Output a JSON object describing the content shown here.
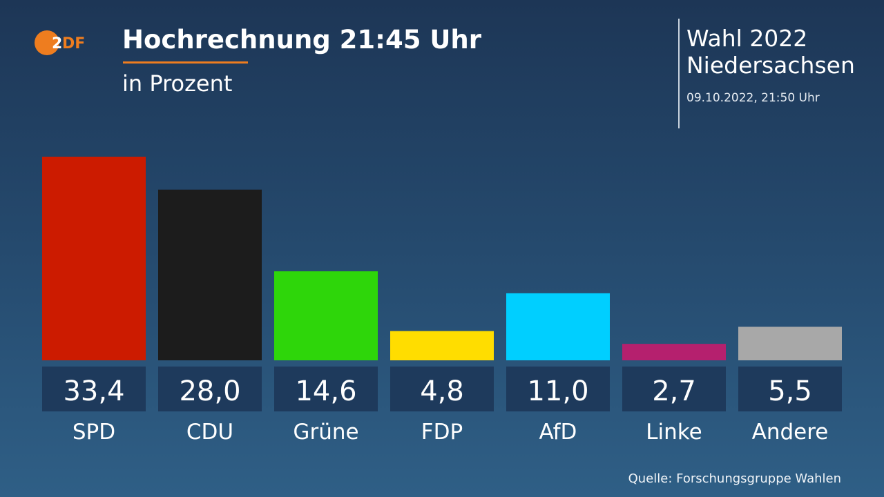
{
  "header": {
    "logo_text": "2DF",
    "title": "Hochrechnung 21:45 Uhr",
    "subtitle": "in Prozent",
    "election_line1": "Wahl 2022",
    "election_line2": "Niedersachsen",
    "datetime": "09.10.2022, 21:50 Uhr"
  },
  "source": "Quelle: Forschungsgruppe Wahlen",
  "colors": {
    "accent": "#ee7d1f",
    "value_box": "#1e3a5c"
  },
  "chart_data": {
    "type": "bar",
    "title": "Hochrechnung 21:45 Uhr",
    "ylabel": "in Prozent",
    "xlabel": "",
    "ylim": [
      0,
      35
    ],
    "grid": false,
    "categories": [
      "SPD",
      "CDU",
      "Grüne",
      "FDP",
      "AfD",
      "Linke",
      "Andere"
    ],
    "values": [
      33.4,
      28.0,
      14.6,
      4.8,
      11.0,
      2.7,
      5.5
    ],
    "value_labels": [
      "33,4",
      "28,0",
      "14,6",
      "4,8",
      "11,0",
      "2,7",
      "5,5"
    ],
    "colors": [
      "#cc1b00",
      "#1c1c1c",
      "#2ed60a",
      "#ffdd00",
      "#00cfff",
      "#b5206e",
      "#a8a8a8"
    ]
  }
}
